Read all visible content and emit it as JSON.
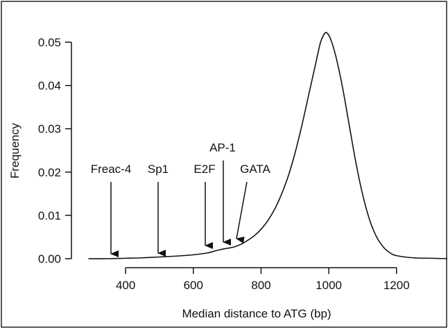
{
  "chart_data": {
    "type": "line",
    "title": "",
    "xlabel": "Median distance to ATG (bp)",
    "ylabel": "Frequency",
    "xlim": [
      240,
      1350
    ],
    "ylim": [
      0,
      0.052
    ],
    "xticks": [
      400,
      600,
      800,
      1000,
      1200
    ],
    "yticks": [
      0.0,
      0.01,
      0.02,
      0.03,
      0.04,
      0.05
    ],
    "xtick_labels": [
      "400",
      "600",
      "800",
      "1000",
      "1200"
    ],
    "ytick_labels": [
      "0.00",
      "0.01",
      "0.02",
      "0.03",
      "0.04",
      "0.05"
    ],
    "grid": false,
    "legend": "none",
    "line_color": "#111111",
    "series": [
      {
        "x": [
          290,
          350,
          400,
          450,
          500,
          550,
          600,
          640,
          660,
          680,
          700,
          720,
          740,
          760,
          780,
          800,
          820,
          840,
          860,
          880,
          900,
          920,
          940,
          960,
          975,
          985,
          990,
          995,
          1005,
          1020,
          1040,
          1060,
          1080,
          1100,
          1120,
          1140,
          1160,
          1180,
          1200,
          1250,
          1300,
          1350
        ],
        "y": [
          0.0,
          0.0,
          0.0001,
          0.0002,
          0.0004,
          0.0006,
          0.0009,
          0.0013,
          0.0017,
          0.0021,
          0.0024,
          0.0027,
          0.0033,
          0.0042,
          0.0053,
          0.0068,
          0.0088,
          0.0114,
          0.0148,
          0.019,
          0.0243,
          0.0306,
          0.0376,
          0.0446,
          0.0498,
          0.0517,
          0.0522,
          0.0521,
          0.0508,
          0.047,
          0.0398,
          0.031,
          0.0222,
          0.0148,
          0.0091,
          0.0052,
          0.0028,
          0.0014,
          0.0007,
          0.0002,
          0.0001,
          0.0
        ]
      }
    ],
    "annotations": [
      {
        "label": "Freac-4",
        "x": 365
      },
      {
        "label": "Sp1",
        "x": 505
      },
      {
        "label": "E2F",
        "x": 645
      },
      {
        "label": "AP-1",
        "x": 697
      },
      {
        "label": "GATA",
        "x": 730
      }
    ]
  }
}
